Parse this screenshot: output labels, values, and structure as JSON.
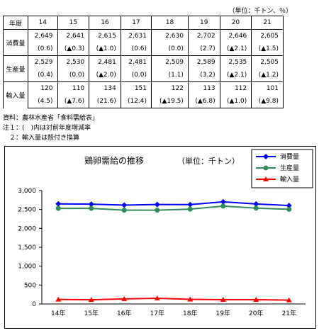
{
  "unit_note": "（単位：千トン、％）",
  "table": {
    "header_label": "年度",
    "years": [
      "14",
      "15",
      "16",
      "17",
      "18",
      "19",
      "20",
      "21"
    ],
    "rows": [
      {
        "label": "消費量",
        "values": [
          "2,649",
          "2,641",
          "2,615",
          "2,631",
          "2,630",
          "2,702",
          "2,646",
          "2,605"
        ],
        "changes": [
          "(0.6)",
          "(▲0.3)",
          "(▲1.0)",
          "(0.6)",
          "(0.0)",
          "(2.7)",
          "(▲2.1)",
          "(▲1.5)"
        ]
      },
      {
        "label": "生産量",
        "values": [
          "2,529",
          "2,530",
          "2,481",
          "2,481",
          "2,509",
          "2,589",
          "2,535",
          "2,505"
        ],
        "changes": [
          "(0.4)",
          "(0.0)",
          "(▲2.0)",
          "(0.0)",
          "(1.1)",
          "(3.2)",
          "(▲2.1)",
          "(▲1.2)"
        ]
      },
      {
        "label": "輸入量",
        "values": [
          "120",
          "110",
          "134",
          "151",
          "122",
          "113",
          "112",
          "101"
        ],
        "changes": [
          "(4.5)",
          "(▲7.6)",
          "(21.6)",
          "(12.4)",
          "(▲19.5)",
          "(▲6.8)",
          "(▲1.0)",
          "(▲9.8)"
        ]
      }
    ]
  },
  "notes": [
    "資料：農林水産省「食料需給表」",
    "注１：(　)内は対前年度増減率",
    "　２：輸入量は殻付き換算"
  ],
  "chart_data": {
    "type": "line",
    "title": "鶏卵需給の推移",
    "unit": "（単位：千トン）",
    "categories": [
      "14年",
      "15年",
      "16年",
      "17年",
      "18年",
      "19年",
      "20年",
      "21年"
    ],
    "ylim": [
      0,
      3000
    ],
    "yticks": [
      "0",
      "500",
      "1,000",
      "1,500",
      "2,000",
      "2,500",
      "3,000"
    ],
    "ytick_values": [
      0,
      500,
      1000,
      1500,
      2000,
      2500,
      3000
    ],
    "legend_position": "top-right",
    "series": [
      {
        "name": "消費量",
        "values": [
          2649,
          2641,
          2615,
          2631,
          2630,
          2702,
          2646,
          2605
        ],
        "color": "#0000ff",
        "marker": "diamond"
      },
      {
        "name": "生産量",
        "values": [
          2529,
          2530,
          2481,
          2481,
          2509,
          2589,
          2535,
          2505
        ],
        "color": "#2e8b57",
        "marker": "circle"
      },
      {
        "name": "輸入量",
        "values": [
          120,
          110,
          134,
          151,
          122,
          113,
          112,
          101
        ],
        "color": "#ff0000",
        "marker": "triangle"
      }
    ]
  }
}
